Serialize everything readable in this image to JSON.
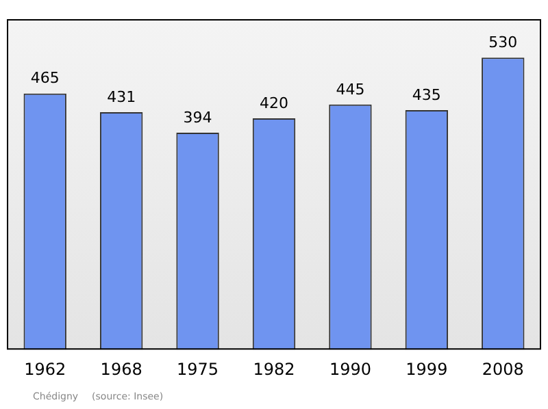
{
  "chart_data": {
    "type": "bar",
    "categories": [
      "1962",
      "1968",
      "1975",
      "1982",
      "1990",
      "1999",
      "2008"
    ],
    "values": [
      465,
      431,
      394,
      420,
      445,
      435,
      530
    ],
    "color": "#6f94f0",
    "data_labels": true,
    "grid": false,
    "legend": false,
    "annotations": [
      "Chédigny",
      "(source: Insee)"
    ]
  }
}
